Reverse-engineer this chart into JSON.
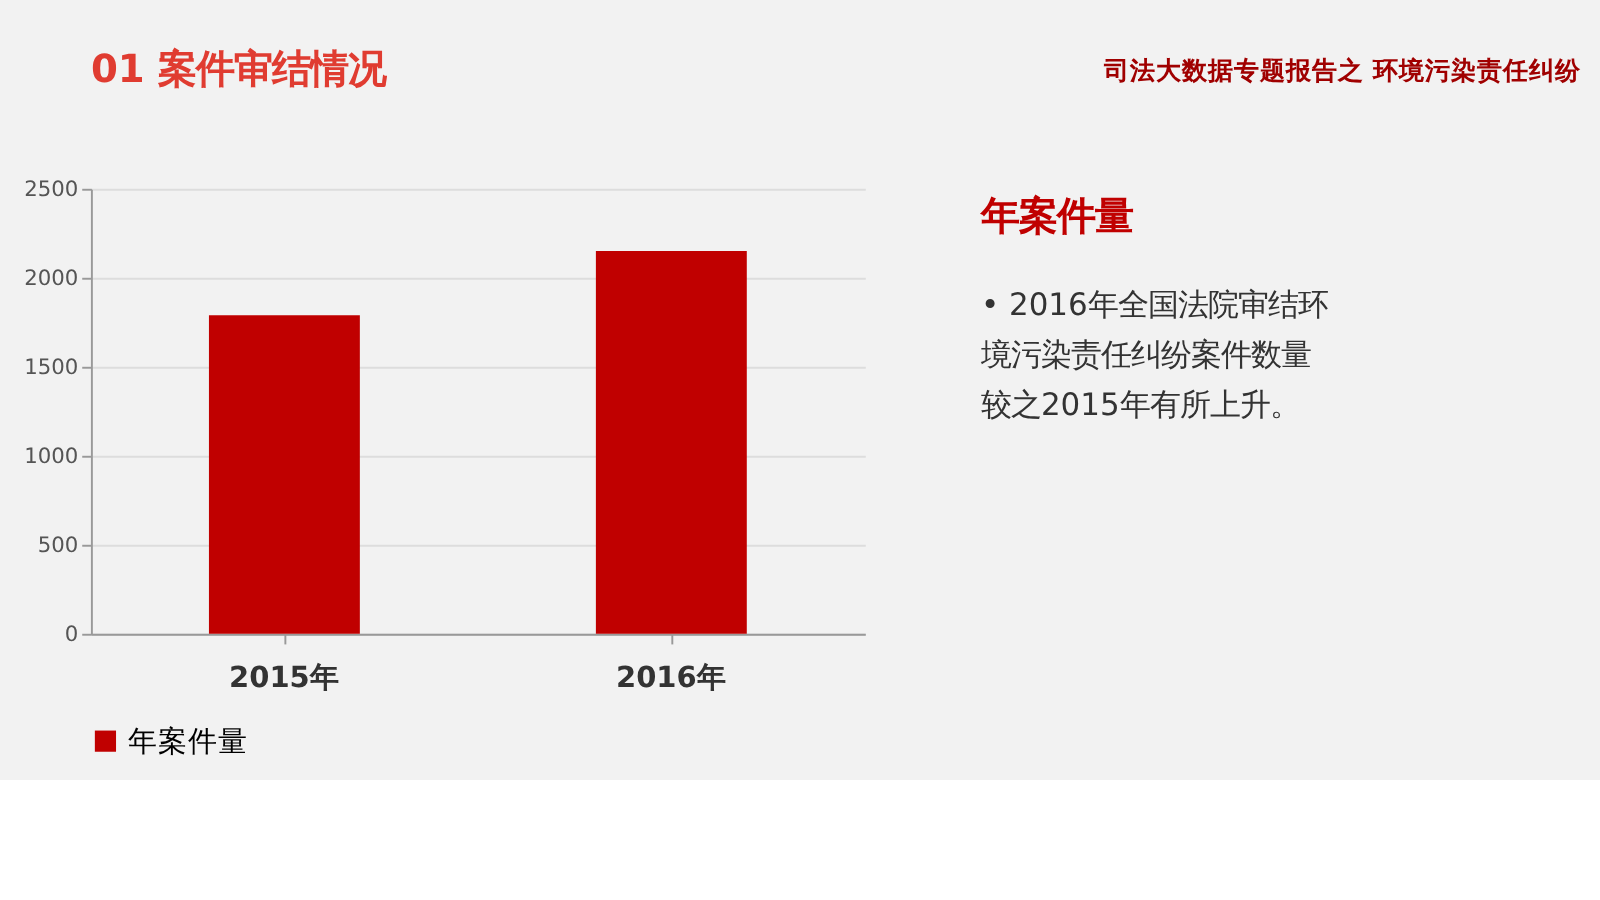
{
  "chart_data": {
    "type": "bar",
    "title": "01 案件审结情况",
    "subtitle": "司法大数据专题报告之 环境污染责任纠纷",
    "categories": [
      "2015年",
      "2016年"
    ],
    "series": [
      {
        "name": "年案件量",
        "color": "#c00000",
        "values": [
          1790,
          2150
        ]
      }
    ],
    "ylim": [
      0,
      2500
    ],
    "yticks": [
      0,
      500,
      1000,
      1500,
      2000,
      2500
    ],
    "grid": "y",
    "legend": "bottom",
    "annotations": [
      "年案件量",
      "• 2016年全国法院审结环境污染责任纠纷案件数量较之2015年有所上升。"
    ]
  }
}
